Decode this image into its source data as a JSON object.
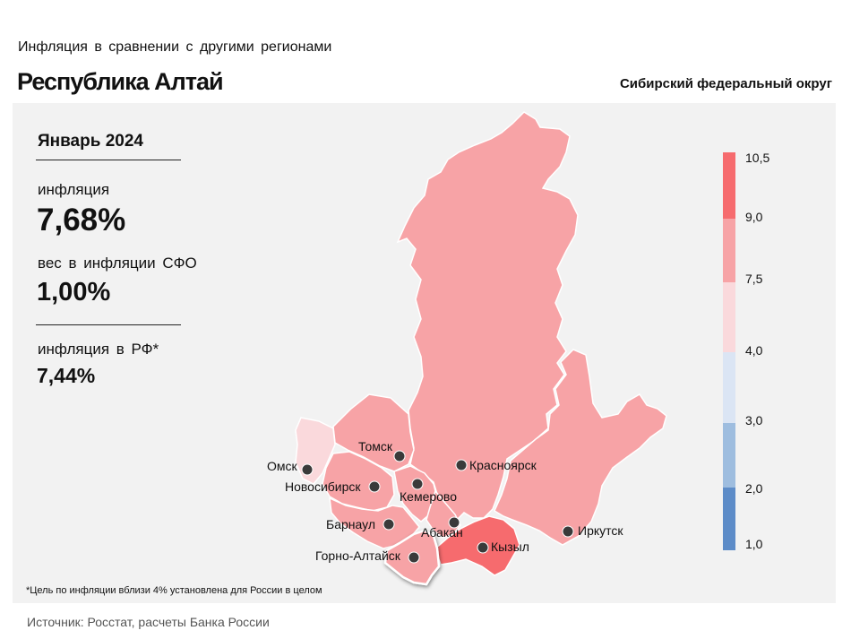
{
  "header": {
    "subtitle": "Инфляция в сравнении с другими регионами",
    "title": "Республика Алтай",
    "district": "Сибирский федеральный округ"
  },
  "stats": {
    "period": "Январь 2024",
    "inflation_label": "инфляция",
    "inflation_value": "7,68%",
    "weight_label": "вес в инфляции СФО",
    "weight_value": "1,00%",
    "rf_label": "инфляция в РФ*",
    "rf_value": "7,44%"
  },
  "map": {
    "cities": {
      "omsk": "Омск",
      "tomsk": "Томск",
      "novosibirsk": "Новосибирск",
      "kemerovo": "Кемерово",
      "krasnoyarsk": "Красноярск",
      "barnaul": "Барнаул",
      "abakan": "Абакан",
      "kyzyl": "Кызыл",
      "irkutsk": "Иркутск",
      "gorno_altaysk": "Горно-Алтайск"
    },
    "colors": {
      "high": "#f66b6e",
      "mid": "#f7a3a6",
      "low": "#fad9dc",
      "blue_light": "#dbe5f4",
      "blue_mid": "#9ebddf",
      "blue_dark": "#5d8cc8"
    }
  },
  "legend": {
    "ticks": [
      "10,5",
      "9,0",
      "7,5",
      "4,0",
      "3,0",
      "2,0",
      "1,0"
    ]
  },
  "footer": {
    "footnote": "*Цель по инфляции вблизи 4% установлена для России в целом",
    "source": "Источник: Росстат, расчеты Банка России"
  }
}
